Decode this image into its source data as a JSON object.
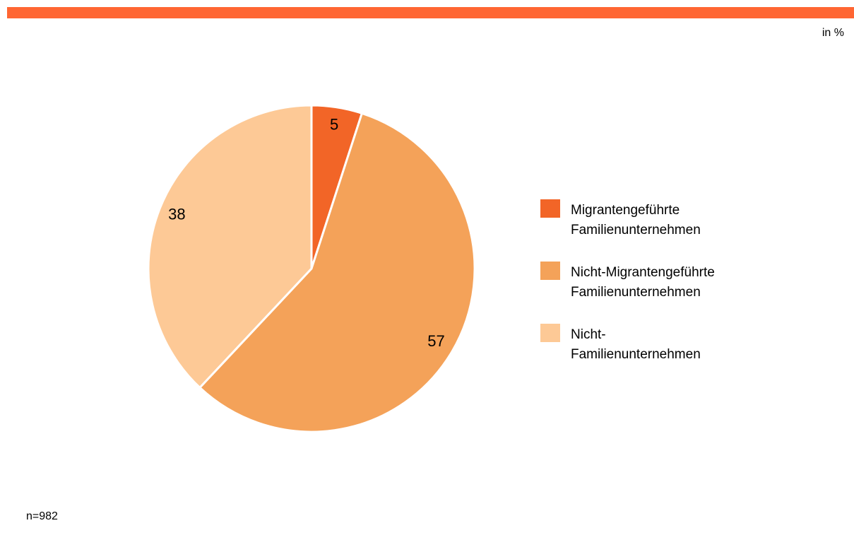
{
  "chart_data": {
    "type": "pie",
    "unit": "in %",
    "note": "n=982",
    "categories": [
      "Migrantengeführte\nFamilienunternehmen",
      "Nicht-Migrantengeführte\nFamilienunternehmen",
      "Nicht-\nFamilienunternehmen"
    ],
    "values": [
      5,
      57,
      38
    ],
    "colors": [
      "#f26527",
      "#f4a259",
      "#fdc996"
    ],
    "legend": "right"
  }
}
